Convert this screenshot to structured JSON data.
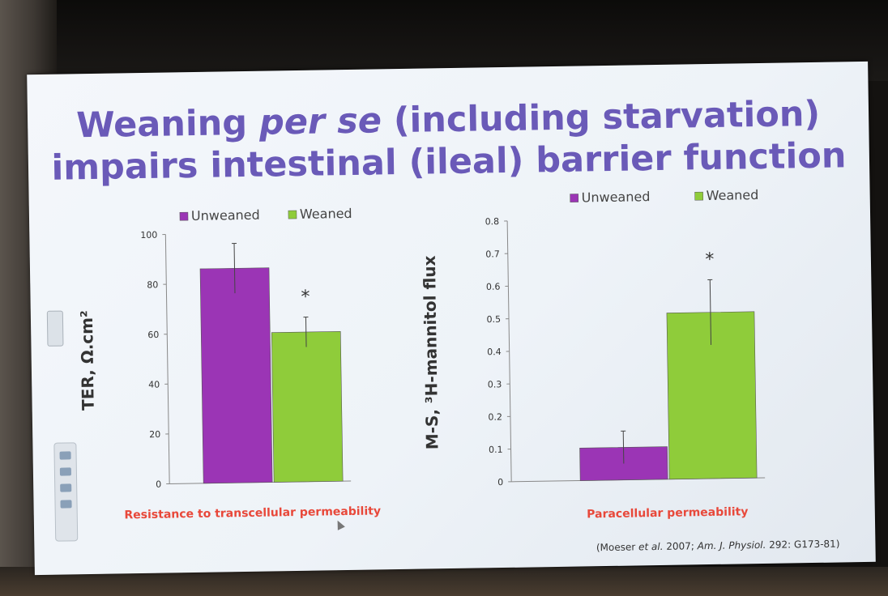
{
  "slide": {
    "title_line1_a": "Weaning ",
    "title_line1_em": "per se",
    "title_line1_b": " (including starvation)",
    "title_line2": "impairs intestinal (ileal) barrier function",
    "citation_a": "(Moeser ",
    "citation_em": "et al.",
    "citation_b": " 2007; ",
    "citation_em2": "Am. J. Physiol.",
    "citation_c": " 292: G173-81)"
  },
  "colors": {
    "unweaned": "#9b35b5",
    "weaned": "#8fcc3a",
    "title": "#6a5ab8",
    "caption": "#e8483a"
  },
  "icons": [
    "toolbar-icon",
    "cursor-icon"
  ],
  "chart_data": [
    {
      "type": "bar",
      "title": "",
      "categories": [
        "Unweaned",
        "Weaned"
      ],
      "series": [
        {
          "name": "Unweaned"
        },
        {
          "name": "Weaned"
        }
      ],
      "values": [
        86,
        60
      ],
      "errors": [
        10,
        6
      ],
      "significance": [
        "",
        "*"
      ],
      "ylabel": "TER, Ω.cm²",
      "xlabel": "Resistance to transcellular permeability",
      "ylim": [
        0,
        100
      ],
      "yticks": [
        "0",
        "20",
        "40",
        "60",
        "80",
        "100"
      ],
      "legend": [
        "Unweaned",
        "Weaned"
      ],
      "legend_position": "top",
      "grid": false
    },
    {
      "type": "bar",
      "title": "",
      "categories": [
        "Unweaned",
        "Weaned"
      ],
      "series": [
        {
          "name": "Unweaned"
        },
        {
          "name": "Weaned"
        }
      ],
      "values": [
        0.1,
        0.51
      ],
      "errors": [
        0.05,
        0.1
      ],
      "significance": [
        "",
        "*"
      ],
      "ylabel": "M-S, ³H-mannitol flux",
      "xlabel": "Paracellular permeability",
      "ylim": [
        0,
        0.8
      ],
      "yticks": [
        "0",
        "0.1",
        "0.2",
        "0.3",
        "0.4",
        "0.5",
        "0.6",
        "0.7",
        "0.8"
      ],
      "legend": [
        "Unweaned",
        "Weaned"
      ],
      "legend_position": "top",
      "grid": false
    }
  ]
}
